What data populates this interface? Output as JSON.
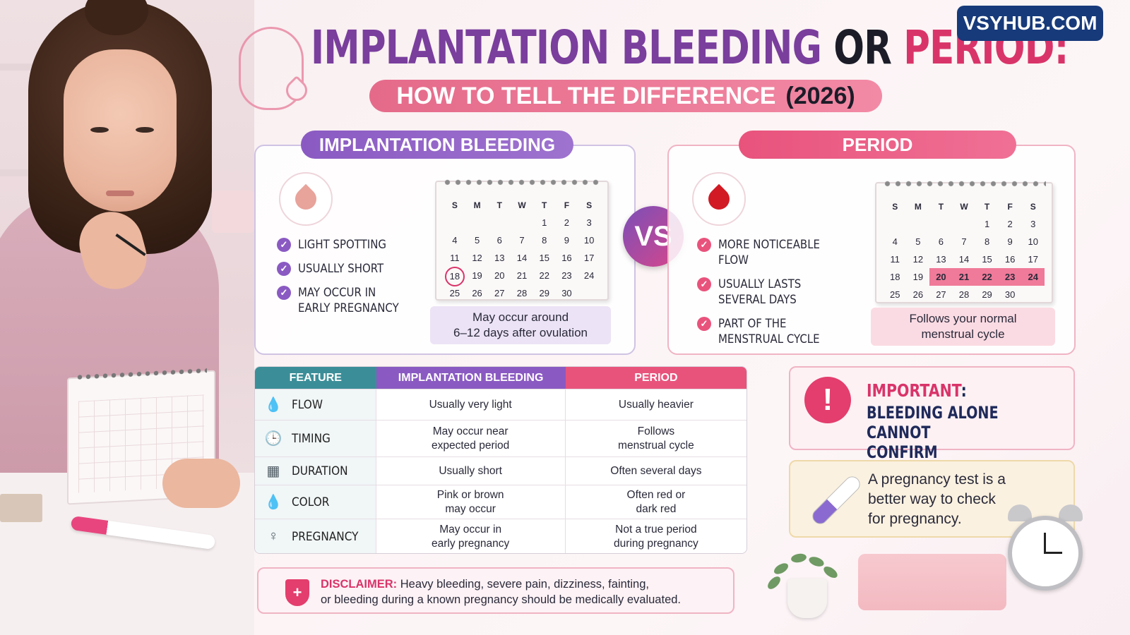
{
  "brand": "VSYHUB.COM",
  "header": {
    "title_part1": "IMPLANTATION BLEEDING",
    "title_part2": "OR",
    "title_part3": "PERIOD:",
    "subtitle": "HOW TO TELL THE DIFFERENCE",
    "subtitle_year": "(2026)"
  },
  "implantation": {
    "tab_label": "IMPLANTATION BLEEDING",
    "icon": "pink-drop-icon",
    "points": [
      "LIGHT SPOTTING",
      "USUALLY SHORT",
      "MAY OCCUR IN\nEARLY PREGNANCY"
    ],
    "calendar": {
      "weekdays": [
        "S",
        "M",
        "T",
        "W",
        "T",
        "F",
        "S"
      ],
      "cells": [
        "",
        "",
        "",
        "",
        "1",
        "2",
        "3",
        "4",
        "5",
        "6",
        "7",
        "8",
        "9",
        "10",
        "11",
        "12",
        "13",
        "14",
        "15",
        "16",
        "17",
        "18",
        "19",
        "20",
        "21",
        "22",
        "23",
        "24",
        "25",
        "26",
        "27",
        "28",
        "29",
        "30",
        ""
      ],
      "highlighted_days": [
        "18"
      ]
    },
    "note": "May occur around\n6–12 days after ovulation"
  },
  "vs_label": "VS",
  "period": {
    "tab_label": "PERIOD",
    "icon": "red-drop-icon",
    "points": [
      "MORE NOTICEABLE FLOW",
      "USUALLY LASTS\nSEVERAL DAYS",
      "PART OF THE\nMENSTRUAL CYCLE"
    ],
    "calendar": {
      "weekdays": [
        "S",
        "M",
        "T",
        "W",
        "T",
        "F",
        "S"
      ],
      "cells": [
        "",
        "",
        "",
        "",
        "1",
        "2",
        "3",
        "4",
        "5",
        "6",
        "7",
        "8",
        "9",
        "10",
        "11",
        "12",
        "13",
        "14",
        "15",
        "16",
        "17",
        "18",
        "19",
        "20",
        "21",
        "22",
        "23",
        "24",
        "25",
        "26",
        "27",
        "28",
        "29",
        "30",
        ""
      ],
      "highlighted_days": [
        "20",
        "21",
        "22",
        "23",
        "24"
      ]
    },
    "note": "Follows your normal\nmenstrual cycle"
  },
  "table": {
    "headers": [
      "FEATURE",
      "IMPLANTATION BLEEDING",
      "PERIOD"
    ],
    "rows": [
      {
        "icon": "drop-icon",
        "feature": "FLOW",
        "implantation": "Usually very light",
        "period": "Usually heavier"
      },
      {
        "icon": "clock-icon",
        "feature": "TIMING",
        "implantation": "May occur near\nexpected period",
        "period": "Follows\nmenstrual cycle"
      },
      {
        "icon": "calendar-icon",
        "feature": "DURATION",
        "implantation": "Usually short",
        "period": "Often several days"
      },
      {
        "icon": "drop-icon",
        "feature": "COLOR",
        "implantation": "Pink or brown\nmay occur",
        "period": "Often red or\ndark red"
      },
      {
        "icon": "pregnant-woman-icon",
        "feature": "PREGNANCY",
        "implantation": "May occur in\nearly pregnancy",
        "period": "Not a true period\nduring pregnancy"
      }
    ]
  },
  "important": {
    "title": "IMPORTANT",
    "colon": ":",
    "body": "BLEEDING ALONE CANNOT\nCONFIRM PREGNANCY"
  },
  "tip": {
    "text": "A pregnancy test is a\nbetter way to check\nfor pregnancy."
  },
  "disclaimer": {
    "label": "DISCLAIMER:",
    "text": "Heavy bleeding, severe pain, dizziness, fainting,\nor bleeding during a known pregnancy should be medically evaluated."
  },
  "colors": {
    "purple": "#8a5ac2",
    "pink": "#e8537c",
    "teal_header": "#3b8e98",
    "light_drop": "#e8a39b",
    "red_drop": "#d11a24"
  }
}
